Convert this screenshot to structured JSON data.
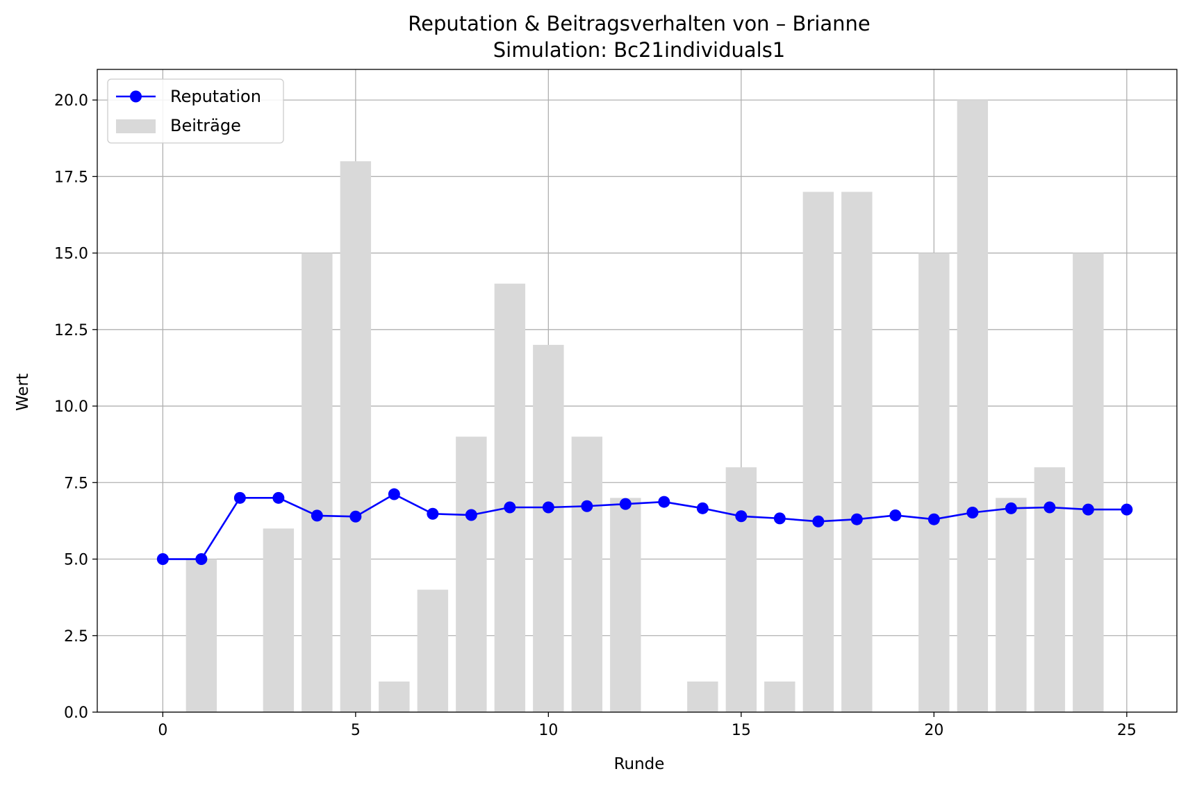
{
  "chart_data": {
    "type": "bar+line",
    "title": "Reputation & Beitragsverhalten von – Brianne",
    "subtitle": "Simulation: Bc21individuals1",
    "xlabel": "Runde",
    "ylabel": "Wert",
    "xlim": [
      -1.7,
      26.3
    ],
    "ylim": [
      0,
      21
    ],
    "xticks": [
      "0",
      "5",
      "10",
      "15",
      "20",
      "25"
    ],
    "yticks": [
      "0.0",
      "2.5",
      "5.0",
      "7.5",
      "10.0",
      "12.5",
      "15.0",
      "17.5",
      "20.0"
    ],
    "grid": true,
    "legend_position": "top-left",
    "x": [
      0,
      1,
      2,
      3,
      4,
      5,
      6,
      7,
      8,
      9,
      10,
      11,
      12,
      13,
      14,
      15,
      16,
      17,
      18,
      19,
      20,
      21,
      22,
      23,
      24,
      25
    ],
    "series": [
      {
        "name": "Beiträge",
        "kind": "bar",
        "color": "#d9d9d9",
        "values": [
          0,
          5,
          0,
          6,
          15,
          18,
          1,
          4,
          9,
          14,
          12,
          9,
          7,
          0,
          1,
          8,
          1,
          17,
          17,
          0,
          15,
          20,
          7,
          8,
          15,
          0
        ]
      },
      {
        "name": "Reputation",
        "kind": "line",
        "color": "#0000ff",
        "values": [
          5.0,
          5.0,
          7.0,
          7.0,
          6.42,
          6.39,
          7.12,
          6.48,
          6.44,
          6.69,
          6.69,
          6.73,
          6.8,
          6.87,
          6.66,
          6.4,
          6.33,
          6.23,
          6.3,
          6.43,
          6.3,
          6.52,
          6.66,
          6.69,
          6.62,
          6.62
        ]
      }
    ]
  }
}
